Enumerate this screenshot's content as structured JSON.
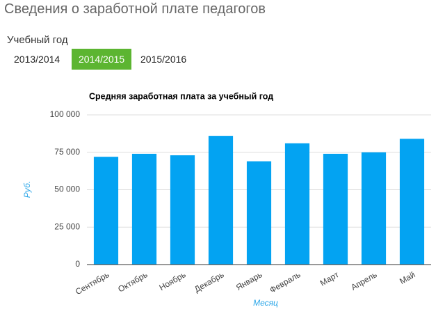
{
  "header": {
    "title": "Сведения о заработной плате педагогов"
  },
  "year_selector": {
    "label": "Учебный год",
    "options": [
      "2013/2014",
      "2014/2015",
      "2015/2016"
    ],
    "selected": 1
  },
  "chart_data": {
    "type": "bar",
    "title": "Средняя заработная плата за учебный год",
    "x_label": "Месяц",
    "y_label": "Руб.",
    "categories": [
      "Сентябрь",
      "Октябрь",
      "Ноябрь",
      "Декабрь",
      "Январь",
      "Февраль",
      "Март",
      "Апрель",
      "Май"
    ],
    "values": [
      72000,
      74000,
      73000,
      86000,
      69000,
      81000,
      74000,
      75000,
      84000
    ],
    "color": "#03a3f2",
    "ylim": [
      0,
      100000
    ],
    "yticks": [
      0,
      {
        "value": 25000,
        "label": "25 000"
      },
      {
        "value": 50000,
        "label": "50 000"
      },
      {
        "value": 75000,
        "label": "75 000"
      },
      {
        "value": 100000,
        "label": "100 000"
      }
    ],
    "grid": true
  }
}
